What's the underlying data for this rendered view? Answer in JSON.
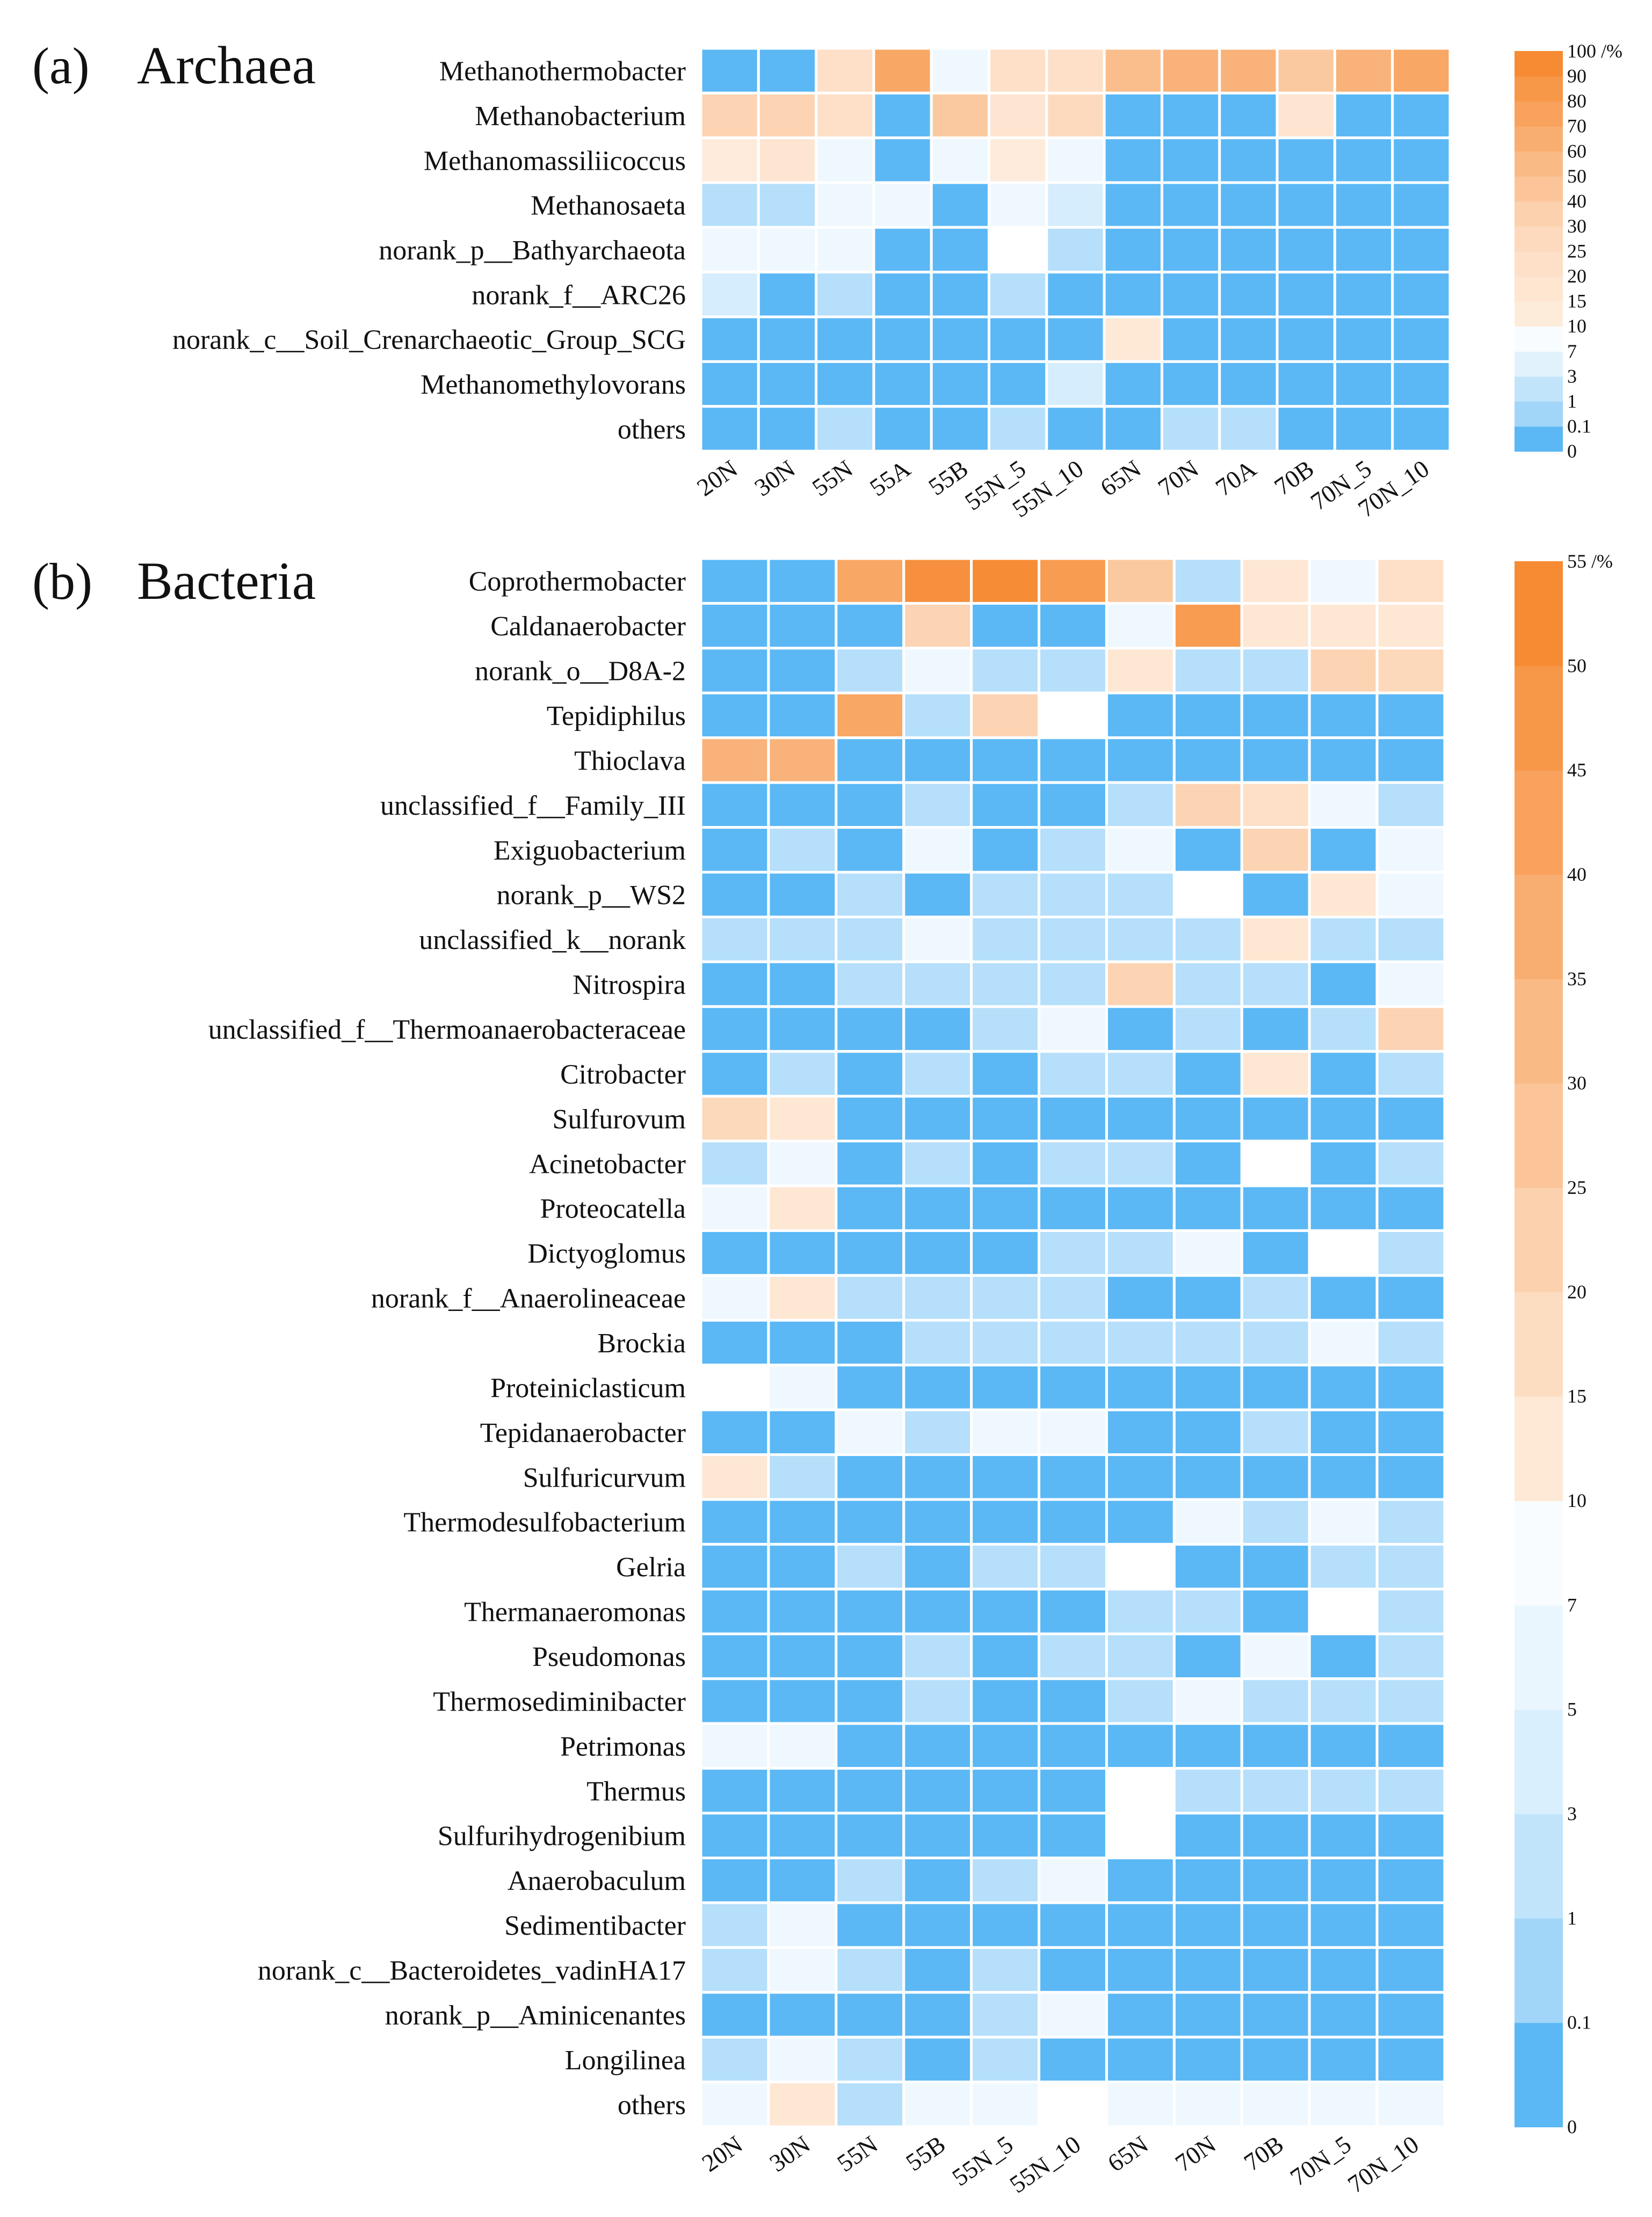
{
  "chart_data": [
    {
      "type": "heatmap",
      "panel_letter": "(a)",
      "title": "Archaea",
      "columns": [
        "20N",
        "30N",
        "55N",
        "55A",
        "55B",
        "55N_5",
        "55N_10",
        "65N",
        "70N",
        "70A",
        "70B",
        "70N_5",
        "70N_10"
      ],
      "rows": [
        "Methanothermobacter",
        "Methanobacterium",
        "Methanomassiliicoccus",
        "Methanosaeta",
        "norank_p__Bathyarchaeota",
        "norank_f__ARC26",
        "norank_c__Soil_Crenarchaeotic_Group_SCG",
        "Methanomethylovorans",
        "others"
      ],
      "values": [
        [
          0.05,
          0.05,
          20,
          70,
          8,
          20,
          20,
          50,
          60,
          60,
          40,
          60,
          70
        ],
        [
          30,
          30,
          20,
          0.05,
          40,
          15,
          25,
          0.05,
          0.05,
          0.05,
          15,
          0.05,
          0.05
        ],
        [
          10,
          15,
          8,
          0.05,
          8,
          10,
          6,
          0.05,
          0.05,
          0.05,
          0.05,
          0.05,
          0.05
        ],
        [
          2,
          2,
          8,
          8,
          0.05,
          5,
          3,
          0.05,
          0.05,
          0.05,
          0.05,
          0.05,
          0.05
        ],
        [
          8,
          8,
          8,
          0.05,
          0.05,
          null,
          2,
          0.05,
          0.05,
          0.05,
          0.05,
          0.05,
          0.05
        ],
        [
          3,
          0.05,
          1,
          0.05,
          0.05,
          1,
          0.05,
          0.05,
          0.05,
          0.05,
          0.05,
          0.05,
          0.05
        ],
        [
          0.05,
          0.05,
          0.05,
          0.05,
          0.05,
          0.05,
          0.05,
          12,
          0.05,
          0.05,
          0.05,
          0.05,
          0.05
        ],
        [
          0.05,
          0.05,
          0.05,
          0.05,
          0.05,
          0.05,
          3,
          0.05,
          0.05,
          0.05,
          0.05,
          0.05,
          0.05
        ],
        [
          0.05,
          0.05,
          2,
          0.05,
          0.05,
          2,
          0.05,
          0.05,
          2,
          2,
          0.05,
          0.05,
          0.05
        ]
      ],
      "color_scale": {
        "ticks": [
          "0",
          "0.1",
          "1",
          "3",
          "7",
          "10",
          "15",
          "20",
          "25",
          "30",
          "40",
          "50",
          "60",
          "70",
          "80",
          "90",
          "100 /%"
        ],
        "low_color": "#5BB8F5",
        "mid_color": "#FFFFFF",
        "high_color": "#F5852A"
      }
    },
    {
      "type": "heatmap",
      "panel_letter": "(b)",
      "title": "Bacteria",
      "columns": [
        "20N",
        "30N",
        "55N",
        "55B",
        "55N_5",
        "55N_10",
        "65N",
        "70N",
        "70B",
        "70N_5",
        "70N_10"
      ],
      "rows": [
        "Coprothermobacter",
        "Caldanaerobacter",
        "norank_o__D8A-2",
        "Tepidiphilus",
        "Thioclava",
        "unclassified_f__Family_III",
        "Exiguobacterium",
        "norank_p__WS2",
        "unclassified_k__norank",
        "Nitrospira",
        "unclassified_f__Thermoanaerobacteraceae",
        "Citrobacter",
        "Sulfurovum",
        "Acinetobacter",
        "Proteocatella",
        "Dictyoglomus",
        "norank_f__Anaerolineaceae",
        "Brockia",
        "Proteiniclasticum",
        "Tepidanaerobacter",
        "Sulfuricurvum",
        "Thermodesulfobacterium",
        "Gelria",
        "Thermanaeromonas",
        "Pseudomonas",
        "Thermosediminibacter",
        "Petrimonas",
        "Thermus",
        "Sulfurihydrogenibium",
        "Anaerobaculum",
        "Sedimentibacter",
        "norank_c__Bacteroidetes_vadinHA17",
        "norank_p__Aminicenantes",
        "Longilinea",
        "others"
      ],
      "values": [
        [
          0.05,
          0.05,
          40,
          50,
          52,
          45,
          25,
          2,
          12,
          8,
          15
        ],
        [
          0.05,
          0.05,
          0.05,
          20,
          0.05,
          0.05,
          5,
          45,
          12,
          12,
          12
        ],
        [
          0.05,
          0.05,
          2,
          5,
          2,
          2,
          12,
          2,
          2,
          20,
          18
        ],
        [
          0.05,
          0.05,
          40,
          2,
          20,
          null,
          0.05,
          0.05,
          0.05,
          0.05,
          0.05
        ],
        [
          35,
          35,
          0.05,
          0.05,
          0.05,
          0.05,
          0.05,
          0.05,
          0.05,
          0.05,
          0.05
        ],
        [
          0.05,
          0.05,
          0.05,
          2,
          0.05,
          0.05,
          2,
          20,
          15,
          6,
          2
        ],
        [
          0.05,
          2,
          0.05,
          5,
          0.05,
          2,
          5,
          0.05,
          20,
          0.05,
          5
        ],
        [
          0.05,
          0.05,
          2,
          0.05,
          2,
          2,
          2,
          null,
          0.05,
          12,
          6
        ],
        [
          2,
          2,
          2,
          8,
          2,
          2,
          2,
          2,
          12,
          2,
          2
        ],
        [
          0.05,
          0.05,
          2,
          2,
          2,
          2,
          20,
          2,
          2,
          0.05,
          5
        ],
        [
          0.05,
          0.05,
          0.05,
          0.05,
          2,
          5,
          0.05,
          2,
          0.05,
          2,
          20
        ],
        [
          0.05,
          2,
          0.05,
          2,
          0.05,
          2,
          2,
          0.05,
          12,
          0.05,
          2
        ],
        [
          18,
          12,
          0.05,
          0.05,
          0.05,
          0.05,
          0.05,
          0.05,
          0.05,
          0.05,
          0.05
        ],
        [
          2,
          5,
          0.05,
          2,
          0.05,
          2,
          2,
          0.05,
          null,
          0.05,
          2
        ],
        [
          8,
          12,
          0.05,
          0.05,
          0.05,
          0.05,
          0.05,
          0.05,
          0.05,
          0.05,
          0.05
        ],
        [
          0.05,
          0.05,
          0.05,
          0.05,
          0.05,
          2,
          2,
          8,
          0.05,
          null,
          2
        ],
        [
          5,
          12,
          2,
          2,
          2,
          2,
          0.05,
          0.05,
          2,
          0.05,
          0.05
        ],
        [
          0.05,
          0.05,
          0.05,
          2,
          2,
          2,
          2,
          2,
          2,
          5,
          2
        ],
        [
          null,
          8,
          0.05,
          0.05,
          0.05,
          0.05,
          0.05,
          0.05,
          0.05,
          0.05,
          0.05
        ],
        [
          0.05,
          0.05,
          5,
          2,
          5,
          5,
          0.05,
          0.05,
          2,
          0.05,
          0.05
        ],
        [
          12,
          2,
          0.05,
          0.05,
          0.05,
          0.05,
          0.05,
          0.05,
          0.05,
          0.05,
          0.05
        ],
        [
          0.05,
          0.05,
          0.05,
          0.05,
          0.05,
          0.05,
          0.05,
          5,
          2,
          5,
          2
        ],
        [
          0.05,
          0.05,
          2,
          0.05,
          2,
          2,
          null,
          0.05,
          0.05,
          2,
          2
        ],
        [
          0.05,
          0.05,
          0.05,
          0.05,
          0.05,
          0.05,
          2,
          2,
          0.05,
          null,
          2
        ],
        [
          0.05,
          0.05,
          0.05,
          2,
          0.05,
          2,
          2,
          0.05,
          5,
          0.05,
          2
        ],
        [
          0.05,
          0.05,
          0.05,
          2,
          0.05,
          0.05,
          2,
          5,
          2,
          2,
          2
        ],
        [
          8,
          5,
          0.05,
          0.05,
          0.05,
          0.05,
          0.05,
          0.05,
          0.05,
          0.05,
          0.05
        ],
        [
          0.05,
          0.05,
          0.05,
          0.05,
          0.05,
          0.05,
          null,
          2,
          2,
          2,
          2
        ],
        [
          0.05,
          0.05,
          0.05,
          0.05,
          0.05,
          0.05,
          null,
          0.05,
          0.05,
          0.05,
          0.05
        ],
        [
          0.05,
          0.05,
          2,
          0.05,
          2,
          5,
          0.05,
          0.05,
          0.05,
          0.05,
          0.05
        ],
        [
          2,
          5,
          0.05,
          0.05,
          0.05,
          0.05,
          0.05,
          0.05,
          0.05,
          0.05,
          0.05
        ],
        [
          2,
          5,
          2,
          0.05,
          2,
          0.05,
          0.05,
          0.05,
          0.05,
          0.05,
          0.05
        ],
        [
          0.05,
          0.05,
          0.05,
          0.05,
          2,
          5,
          0.05,
          0.05,
          0.05,
          0.05,
          0.05
        ],
        [
          2,
          5,
          2,
          0.05,
          2,
          0.05,
          0.05,
          0.05,
          0.05,
          0.05,
          0.05
        ],
        [
          8,
          12,
          2,
          8,
          8,
          null,
          8,
          5,
          5,
          5,
          8
        ]
      ],
      "color_scale": {
        "ticks": [
          "0",
          "0.1",
          "1",
          "3",
          "5",
          "7",
          "10",
          "15",
          "20",
          "25",
          "30",
          "35",
          "40",
          "45",
          "50",
          "55 /%"
        ],
        "low_color": "#5BB8F5",
        "mid_color": "#FFFFFF",
        "high_color": "#F5852A"
      }
    }
  ]
}
